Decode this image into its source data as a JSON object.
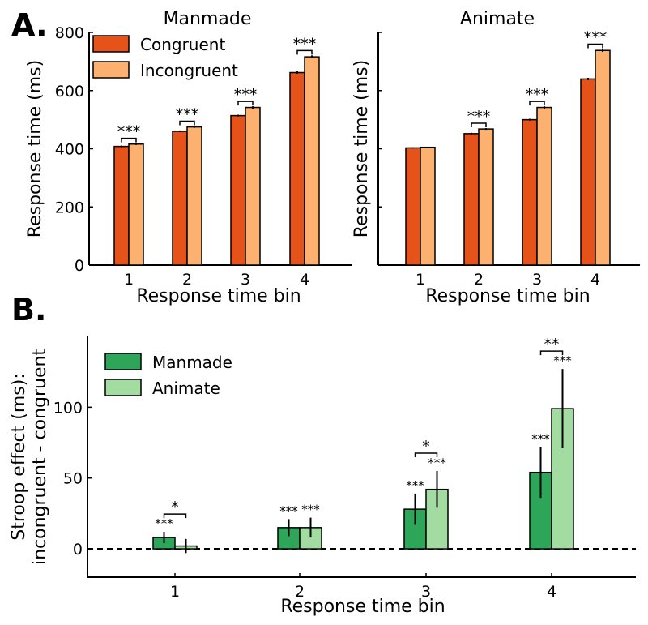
{
  "panel_labels": {
    "a": "A.",
    "b": "B."
  },
  "chart_data": [
    {
      "type": "bar",
      "id": "A-left",
      "title": "Manmade",
      "xlabel": "Response time bin",
      "ylabel": "Response time (ms)",
      "ylim": [
        0,
        800
      ],
      "yticks": [
        0,
        200,
        400,
        600,
        800
      ],
      "ytick_labels": [
        "0",
        "200",
        "400",
        "600",
        "800"
      ],
      "categories": [
        "1",
        "2",
        "3",
        "4"
      ],
      "series": [
        {
          "name": "Congruent",
          "color": "#e5531a",
          "values": [
            408,
            460,
            514,
            662
          ],
          "errors": [
            3,
            3,
            3,
            4
          ]
        },
        {
          "name": "Incongruent",
          "color": "#fdb170",
          "values": [
            416,
            475,
            542,
            716
          ],
          "errors": [
            3,
            3,
            4,
            5
          ]
        }
      ],
      "significance": [
        "***",
        "***",
        "***",
        "***"
      ],
      "legend": "top-left"
    },
    {
      "type": "bar",
      "id": "A-right",
      "title": "Animate",
      "xlabel": "Response time bin",
      "ylabel": "Response time (ms)",
      "ylim": [
        0,
        800
      ],
      "yticks": [
        0,
        200,
        400,
        600,
        800
      ],
      "ytick_labels": [
        "",
        "",
        "",
        "",
        ""
      ],
      "categories": [
        "1",
        "2",
        "3",
        "4"
      ],
      "series": [
        {
          "name": "Congruent",
          "color": "#e5531a",
          "values": [
            403,
            452,
            500,
            640
          ],
          "errors": [
            2,
            3,
            3,
            4
          ]
        },
        {
          "name": "Incongruent",
          "color": "#fdb170",
          "values": [
            405,
            468,
            542,
            738
          ],
          "errors": [
            2,
            3,
            4,
            5
          ]
        }
      ],
      "significance": [
        "",
        "***",
        "***",
        "***"
      ]
    },
    {
      "type": "bar",
      "id": "B",
      "title": "",
      "xlabel": "Response time bin",
      "ylabel_lines": [
        "Stroop effect (ms):",
        "incongruent - congruent"
      ],
      "ylim": [
        -20,
        150
      ],
      "yticks": [
        0,
        50,
        100
      ],
      "ytick_labels": [
        "0",
        "50",
        "100"
      ],
      "categories": [
        "1",
        "2",
        "3",
        "4"
      ],
      "series": [
        {
          "name": "Manmade",
          "color": "#2ea65a",
          "values": [
            8,
            15,
            28,
            54
          ],
          "errors": [
            4,
            6,
            11,
            18
          ]
        },
        {
          "name": "Animate",
          "color": "#a3dca0",
          "values": [
            2,
            15,
            42,
            99
          ],
          "errors": [
            5,
            7,
            13,
            28
          ]
        }
      ],
      "bar_significance": [
        [
          "***",
          ""
        ],
        [
          "***",
          "***"
        ],
        [
          "***",
          "***"
        ],
        [
          "***",
          "***"
        ]
      ],
      "pair_significance": [
        "*",
        "",
        "*",
        "**"
      ],
      "baseline": 0,
      "legend": "top-left"
    }
  ]
}
